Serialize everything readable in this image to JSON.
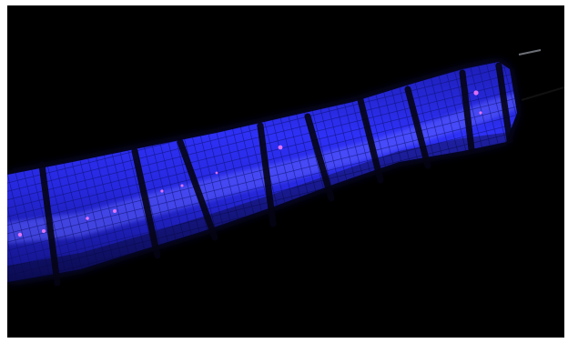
{
  "image": {
    "subject": "blue-glowing-plasma-tube",
    "background_color": "#000000",
    "frame_color": "#ffffff",
    "glow_color": "#2a2cff",
    "glow_core_color": "#5f63ff",
    "mesh_color": "#0b0d6b",
    "band_color": "#050414",
    "spark_color": "#ff7cff"
  }
}
